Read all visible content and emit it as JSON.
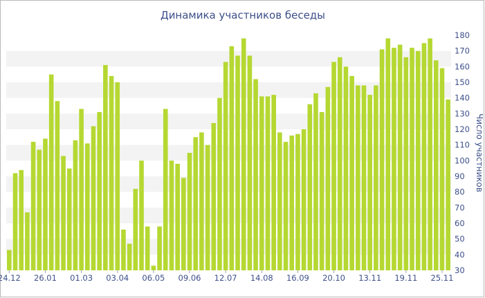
{
  "chart_data": {
    "type": "bar",
    "title": "Динамика участников беседы",
    "ylabel": "Число участников",
    "ylim": [
      30,
      180
    ],
    "yticks": [
      30,
      40,
      50,
      60,
      70,
      80,
      90,
      100,
      110,
      120,
      130,
      140,
      150,
      160,
      170,
      180
    ],
    "xtick_labels": [
      "24.12",
      "26.01",
      "01.03",
      "03.04",
      "06.05",
      "09.06",
      "12.07",
      "14.08",
      "16.09",
      "20.10",
      "13.11",
      "19.11",
      "25.11"
    ],
    "xtick_index": [
      0,
      6,
      12,
      18,
      24,
      30,
      36,
      42,
      48,
      54,
      60,
      66,
      72
    ],
    "bar_color": "#b5d832",
    "band_color": "#f3f3f3",
    "values": [
      43,
      92,
      94,
      67,
      112,
      107,
      114,
      155,
      138,
      103,
      95,
      113,
      133,
      111,
      122,
      131,
      161,
      154,
      150,
      56,
      47,
      82,
      100,
      58,
      33,
      58,
      133,
      100,
      98,
      89,
      105,
      115,
      118,
      110,
      124,
      140,
      163,
      173,
      167,
      178,
      167,
      152,
      141,
      141,
      142,
      118,
      112,
      116,
      117,
      120,
      136,
      143,
      131,
      147,
      163,
      166,
      160,
      154,
      148,
      148,
      142,
      148,
      171,
      178,
      172,
      174,
      166,
      172,
      170,
      175,
      178,
      164,
      159,
      139
    ]
  }
}
